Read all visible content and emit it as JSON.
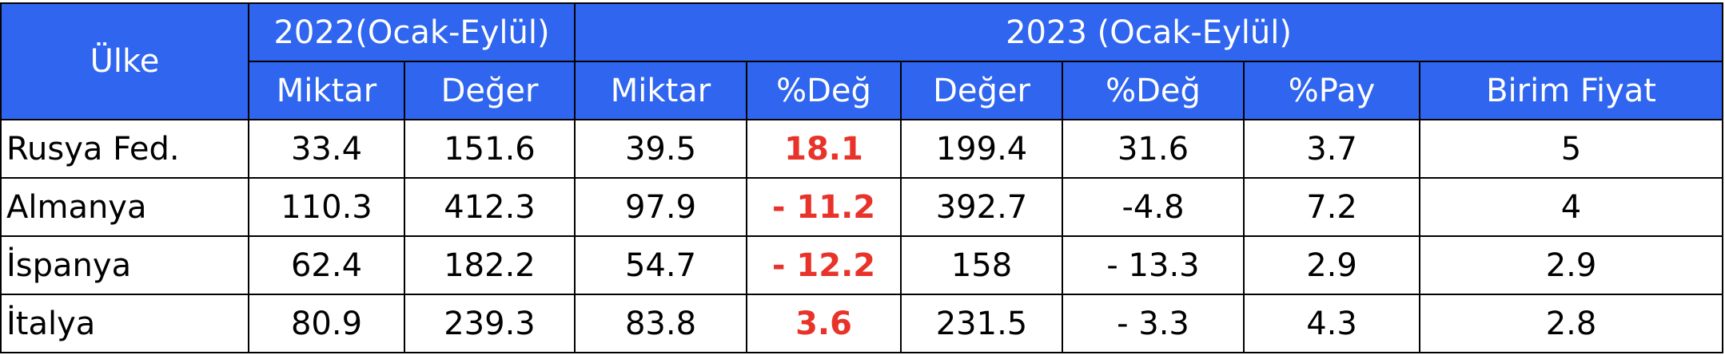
{
  "table": {
    "header": {
      "country": "Ülke",
      "group_2022": "2022(Ocak-Eylül)",
      "group_2023": "2023 (Ocak-Eylül)",
      "columns": [
        "Miktar",
        "Değer",
        "Miktar",
        "%Değ",
        "Değer",
        "%Değ",
        "%Pay",
        "Birim Fiyat"
      ]
    },
    "rows": [
      [
        "Rusya Fed.",
        "33.4",
        "151.6",
        "39.5",
        "18.1",
        "199.4",
        "31.6",
        "3.7",
        "5"
      ],
      [
        "Almanya",
        "110.3",
        "412.3",
        "97.9",
        "- 11.2",
        "392.7",
        "-4.8",
        "7.2",
        "4"
      ],
      [
        "İspanya",
        "62.4",
        "182.2",
        "54.7",
        "- 12.2",
        "158",
        "- 13.3",
        "2.9",
        "2.9"
      ],
      [
        "İtalya",
        "80.9",
        "239.3",
        "83.8",
        "3.6",
        "231.5",
        "- 3.3",
        "4.3",
        "2.8"
      ]
    ]
  }
}
